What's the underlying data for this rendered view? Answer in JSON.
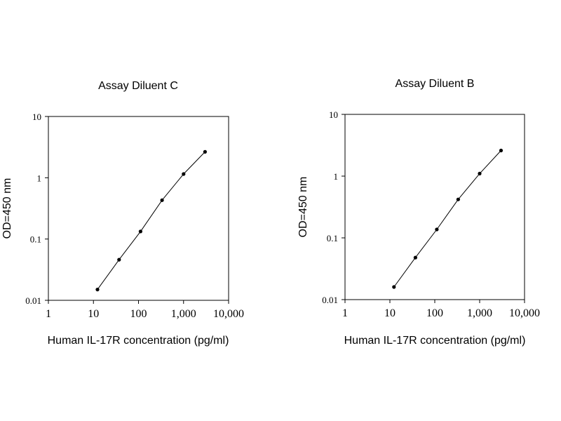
{
  "chart_data": [
    {
      "type": "line",
      "title": "Assay Diluent C",
      "xlabel": "Human IL-17R concentration (pg/ml)",
      "ylabel": "OD=450 nm",
      "xscale": "log",
      "yscale": "log",
      "xlim": [
        1,
        10000
      ],
      "ylim": [
        0.01,
        10
      ],
      "x_ticks": [
        "1",
        "10",
        "100",
        "1,000",
        "10,000"
      ],
      "y_ticks": [
        "0.01",
        "0.1",
        "1",
        "10"
      ],
      "grid": false,
      "series": [
        {
          "x": [
            12.3,
            37,
            111,
            333,
            1000,
            3000
          ],
          "y": [
            0.015,
            0.046,
            0.133,
            0.43,
            1.15,
            2.65
          ]
        }
      ]
    },
    {
      "type": "line",
      "title": "Assay Diluent B",
      "xlabel": "Human IL-17R concentration (pg/ml)",
      "ylabel": "OD=450 nm",
      "xscale": "log",
      "yscale": "log",
      "xlim": [
        1,
        10000
      ],
      "ylim": [
        0.01,
        10
      ],
      "x_ticks": [
        "1",
        "10",
        "100",
        "1,000",
        "10,000"
      ],
      "y_ticks": [
        "0.01",
        "0.1",
        "1",
        "10"
      ],
      "grid": false,
      "series": [
        {
          "x": [
            12.3,
            37,
            111,
            333,
            1000,
            3000
          ],
          "y": [
            0.016,
            0.048,
            0.137,
            0.42,
            1.1,
            2.6
          ]
        }
      ]
    }
  ]
}
